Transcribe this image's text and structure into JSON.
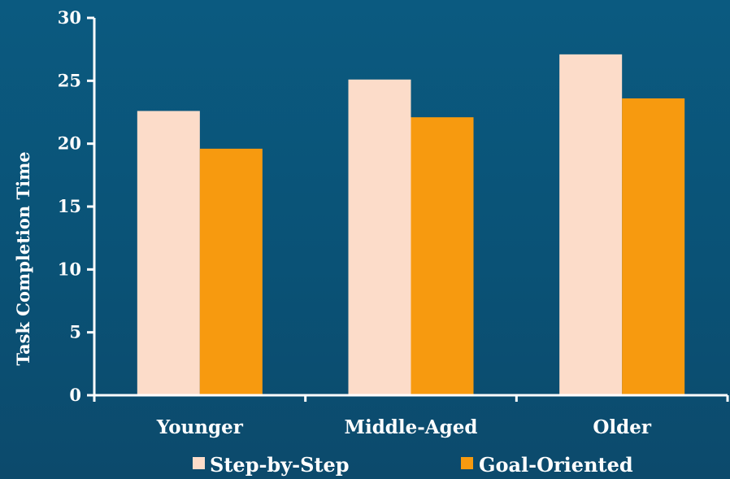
{
  "chart_data": {
    "type": "bar",
    "title": "",
    "xlabel": "",
    "ylabel": "Task Completion Time",
    "categories": [
      "Younger",
      "Middle-Aged",
      "Older"
    ],
    "series": [
      {
        "name": "Step-by-Step",
        "values": [
          22.6,
          25.1,
          27.1
        ],
        "color": "#fcdcc9"
      },
      {
        "name": "Goal-Oriented",
        "values": [
          19.6,
          22.1,
          23.6
        ],
        "color": "#f79a0f"
      }
    ],
    "ylim": [
      0,
      30
    ],
    "yticks": [
      0,
      5,
      10,
      15,
      20,
      25,
      30
    ],
    "grid": false,
    "legend": "bottom",
    "axis_color": "#ffffff"
  }
}
